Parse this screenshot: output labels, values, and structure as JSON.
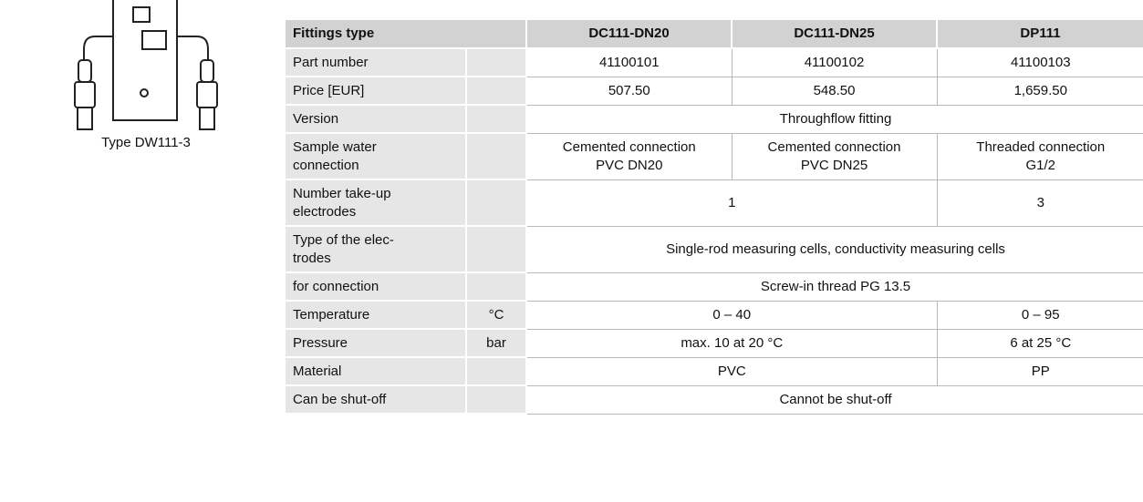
{
  "figure": {
    "caption": "Type DW111-3"
  },
  "table": {
    "header": [
      "Fittings type",
      "DC111-DN20",
      "DC111-DN25",
      "DP111"
    ],
    "rows": [
      {
        "label": "Part number",
        "values": [
          "41100101",
          "41100102",
          "41100103"
        ]
      },
      {
        "label": "Price [EUR]",
        "values": [
          "507.50",
          "548.50",
          "1,659.50"
        ]
      },
      {
        "label": "Version",
        "values": [
          "Throughflow fitting"
        ]
      },
      {
        "label": "Sample water\nconnection",
        "values": [
          "Cemented connection\nPVC DN20",
          "Cemented connection\nPVC DN25",
          "Threaded connection\nG1/2"
        ]
      },
      {
        "label": "Number take-up\nelectrodes",
        "values": [
          "1",
          "3"
        ]
      },
      {
        "label": "Type of the elec-\ntrodes",
        "values": [
          "Single-rod measuring cells, conductivity measuring cells"
        ]
      },
      {
        "label": "for connection",
        "values": [
          "Screw-in thread PG 13.5"
        ]
      },
      {
        "label": "Temperature",
        "unit": "°C",
        "values": [
          "0 – 40",
          "0 – 95"
        ]
      },
      {
        "label": "Pressure",
        "unit": "bar",
        "values": [
          "max. 10 at 20 °C",
          "6 at 25 °C"
        ]
      },
      {
        "label": "Material",
        "values": [
          "PVC",
          "PP"
        ]
      },
      {
        "label": "Can be shut-off",
        "values": [
          "Cannot be shut-off"
        ]
      }
    ]
  }
}
